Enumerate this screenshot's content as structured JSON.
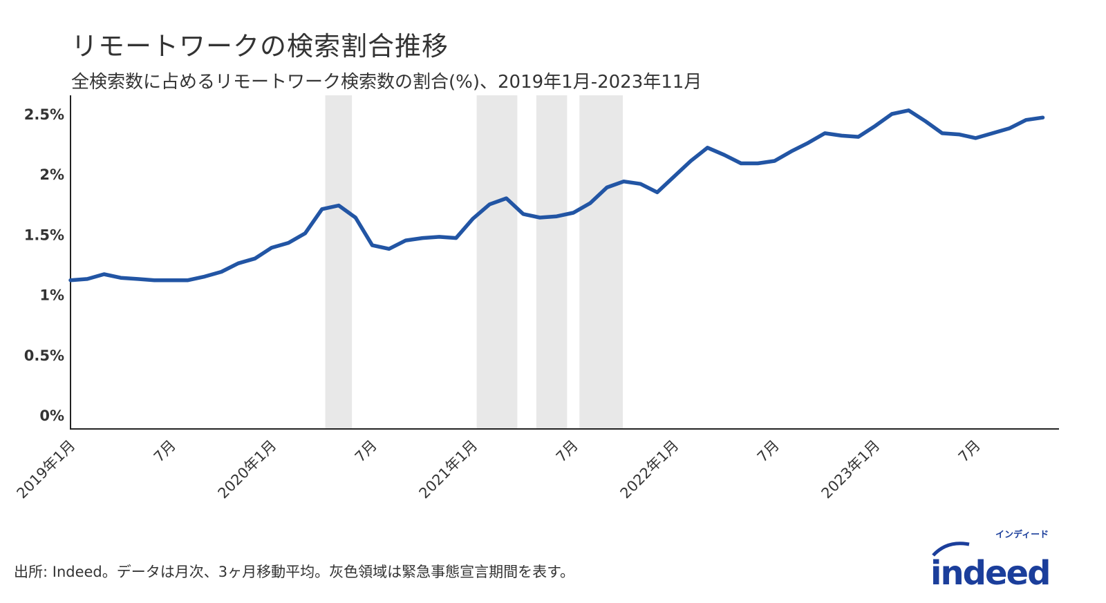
{
  "chart_data": {
    "type": "line",
    "title": "リモートワークの検索割合推移",
    "subtitle": "全検索数に占めるリモートワーク検索数の割合(%)、2019年1月-2023年11月",
    "footer": "出所: Indeed。データは月次、3ヶ月移動平均。灰色領域は緊急事態宣言期間を表す。",
    "xlabel": "",
    "ylabel": "",
    "x_start": "2019-01",
    "x_end": "2023-11",
    "ylim": [
      0,
      2.75
    ],
    "y_ticks": [
      0,
      0.5,
      1,
      1.5,
      2,
      2.5
    ],
    "y_tick_labels": [
      "0%",
      "0.5%",
      "1%",
      "1.5%",
      "2%",
      "2.5%"
    ],
    "x_ticks": [
      "2019-01",
      "2019-07",
      "2020-01",
      "2020-07",
      "2021-01",
      "2021-07",
      "2022-01",
      "2022-07",
      "2023-01",
      "2023-07"
    ],
    "x_tick_labels": [
      "2019年1月",
      "7月",
      "2020年1月",
      "7月",
      "2021年1月",
      "7月",
      "2022年1月",
      "7月",
      "2023年1月",
      "7月"
    ],
    "grid": false,
    "series": [
      {
        "color": "#2255a4",
        "values": [
          1.12,
          1.13,
          1.17,
          1.14,
          1.13,
          1.12,
          1.12,
          1.12,
          1.15,
          1.19,
          1.26,
          1.3,
          1.39,
          1.43,
          1.51,
          1.71,
          1.74,
          1.64,
          1.41,
          1.38,
          1.45,
          1.47,
          1.48,
          1.47,
          1.63,
          1.75,
          1.8,
          1.67,
          1.64,
          1.65,
          1.68,
          1.76,
          1.89,
          1.94,
          1.92,
          1.85,
          1.98,
          2.11,
          2.22,
          2.16,
          2.09,
          2.09,
          2.11,
          2.19,
          2.26,
          2.34,
          2.32,
          2.31,
          2.4,
          2.5,
          2.53,
          2.44,
          2.34,
          2.33,
          2.3,
          2.34,
          2.38,
          2.45,
          2.47
        ]
      }
    ],
    "shaded_periods": [
      {
        "start": "2020-04-07",
        "end": "2020-05-25"
      },
      {
        "start": "2021-01-08",
        "end": "2021-03-21"
      },
      {
        "start": "2021-04-25",
        "end": "2021-06-20"
      },
      {
        "start": "2021-07-12",
        "end": "2021-09-30"
      }
    ],
    "shade_color": "#e8e8e8"
  },
  "logo": {
    "text": "indeed",
    "kana": "インディード",
    "color": "#1b3e9b"
  }
}
